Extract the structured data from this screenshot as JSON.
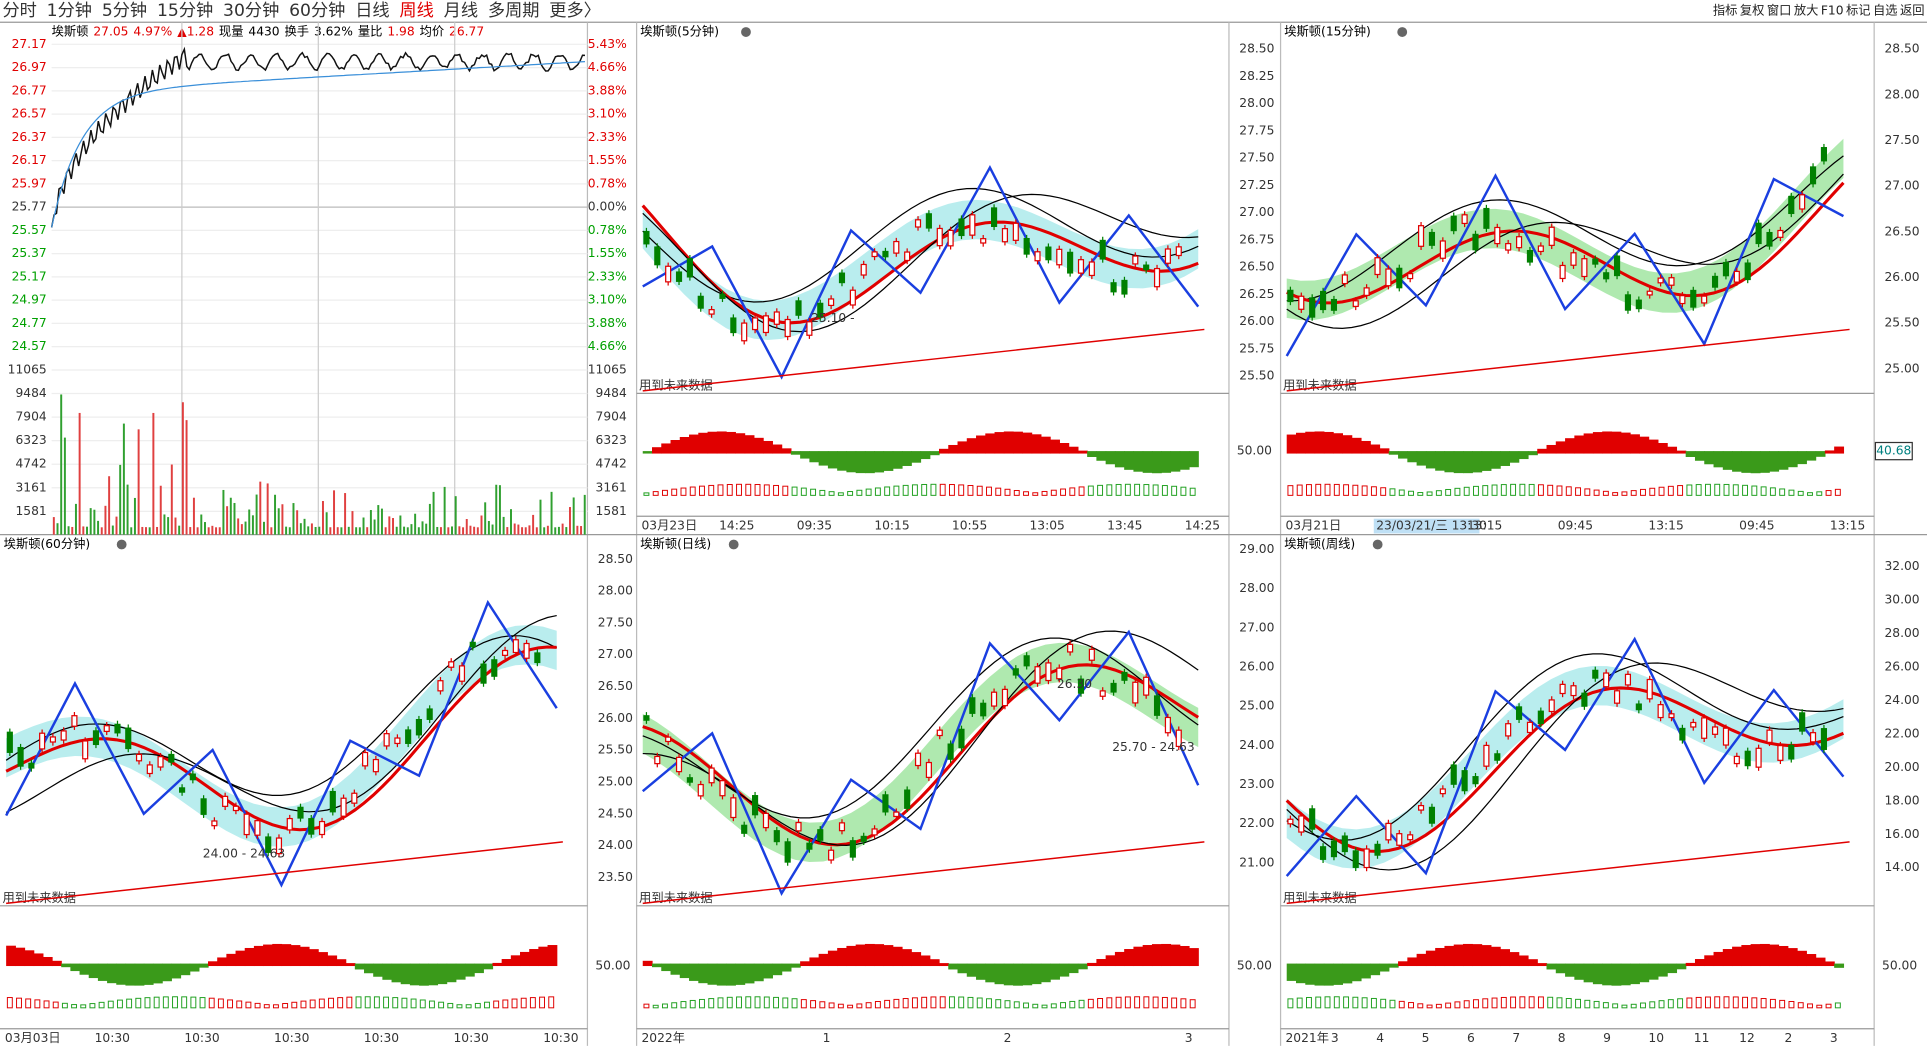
{
  "toolbar": {
    "periods": [
      "分时",
      "1分钟",
      "5分钟",
      "15分钟",
      "30分钟",
      "60分钟",
      "日线",
      "周线",
      "月线",
      "多周期",
      "更多〉"
    ],
    "active": "周线",
    "tools": [
      "指标",
      "复权",
      "窗口",
      "放大",
      "F10",
      "标记",
      "自选",
      "返回"
    ]
  },
  "intraday": {
    "header": [
      {
        "text": "埃斯顿",
        "color": "#000000"
      },
      {
        "text": "27.05",
        "color": "#e00000"
      },
      {
        "text": "4.97%",
        "color": "#e00000"
      },
      {
        "text": "▲1.28",
        "color": "#e00000"
      },
      {
        "text": "现量",
        "color": "#000000"
      },
      {
        "text": "4430",
        "color": "#000000"
      },
      {
        "text": "换手",
        "color": "#000000"
      },
      {
        "text": "3.62%",
        "color": "#000000"
      },
      {
        "text": "量比",
        "color": "#000000"
      },
      {
        "text": "1.98",
        "color": "#e00000"
      },
      {
        "text": "均价",
        "color": "#000000"
      },
      {
        "text": "26.77",
        "color": "#e00000"
      }
    ],
    "price_labels": [
      "27.17",
      "26.97",
      "26.77",
      "26.57",
      "26.37",
      "26.17",
      "25.97",
      "25.77",
      "25.57",
      "25.37",
      "25.17",
      "24.97",
      "24.77",
      "24.57"
    ],
    "percent_labels": [
      "5.43%",
      "4.66%",
      "3.88%",
      "3.10%",
      "2.33%",
      "1.55%",
      "0.78%",
      "0.00%",
      "0.78%",
      "1.55%",
      "2.33%",
      "3.10%",
      "3.88%",
      "4.66%"
    ],
    "volume_labels": [
      "11065",
      "9484",
      "7904",
      "6323",
      "4742",
      "3161",
      "1581"
    ]
  },
  "panels": [
    {
      "title": "埃斯顿(5分钟)",
      "axis": [
        "28.50",
        "28.25",
        "28.00",
        "27.75",
        "27.50",
        "27.25",
        "27.00",
        "26.75",
        "26.50",
        "26.25",
        "26.00",
        "25.75",
        "25.50"
      ],
      "indicator": "50.00",
      "note": "用到未来数据",
      "x_labels": [
        "03月23日",
        "14:25",
        "09:35",
        "10:15",
        "10:55",
        "13:05",
        "13:45",
        "14:25"
      ],
      "annotations": [
        "25.10 -"
      ]
    },
    {
      "title": "埃斯顿(15分钟)",
      "axis": [
        "28.50",
        "28.00",
        "27.50",
        "27.00",
        "26.50",
        "26.00",
        "25.50",
        "25.00"
      ],
      "indicator": "40.68",
      "note": "用到未来数据",
      "x_labels": [
        "03月21日",
        "23/03/21/三 13:30",
        "13:15",
        "09:45",
        "13:15",
        "09:45",
        "13:15"
      ],
      "annotations": []
    },
    {
      "title": "埃斯顿(60分钟)",
      "axis": [
        "28.50",
        "28.00",
        "27.50",
        "27.00",
        "26.50",
        "26.00",
        "25.50",
        "25.00",
        "24.50",
        "24.00",
        "23.50"
      ],
      "indicator": "50.00",
      "note": "用到未来数据",
      "x_labels": [
        "03月03日",
        "10:30",
        "10:30",
        "10:30",
        "10:30",
        "10:30",
        "10:30"
      ],
      "annotations": [
        "24.00 - 24.63"
      ]
    },
    {
      "title": "埃斯顿(日线)",
      "axis": [
        "29.00",
        "28.00",
        "27.00",
        "26.00",
        "25.00",
        "24.00",
        "23.00",
        "22.00",
        "21.00"
      ],
      "indicator": "50.00",
      "note": "用到未来数据",
      "x_labels": [
        "2022年",
        "1",
        "2",
        "3"
      ],
      "annotations": [
        "26.30",
        "25.70 - 24.63"
      ]
    },
    {
      "title": "埃斯顿(周线)",
      "axis": [
        "32.00",
        "30.00",
        "28.00",
        "26.00",
        "24.00",
        "22.00",
        "20.00",
        "18.00",
        "16.00",
        "14.00"
      ],
      "indicator": "50.00",
      "note": "用到未来数据",
      "x_labels": [
        "2021年",
        "3",
        "4",
        "5",
        "6",
        "7",
        "8",
        "9",
        "10",
        "11",
        "12",
        "2",
        "3"
      ],
      "annotations": []
    }
  ]
}
